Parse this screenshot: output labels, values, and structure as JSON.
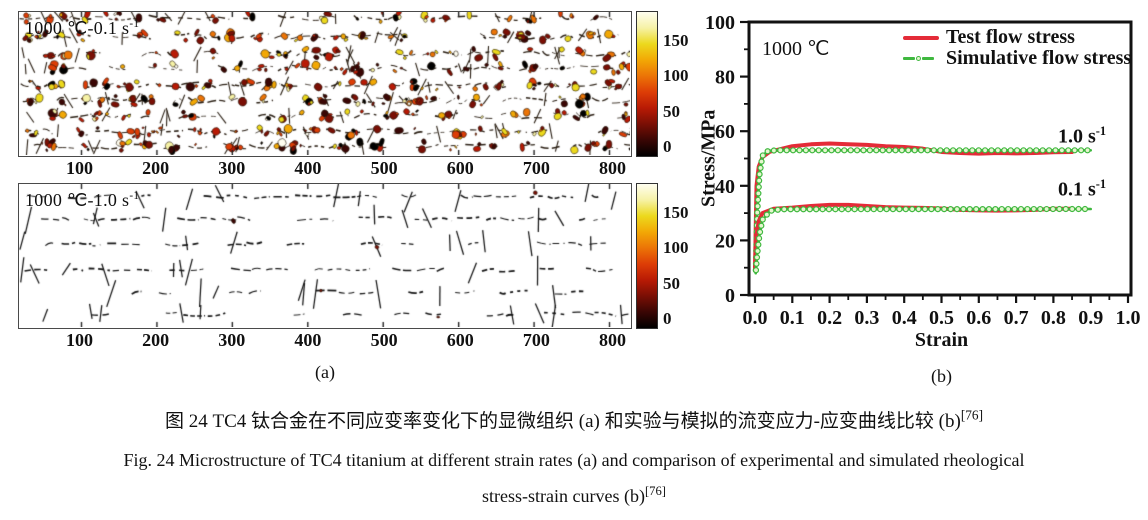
{
  "figure": {
    "caption_zh": "图 24  TC4 钛合金在不同应变率变化下的显微组织 (a) 和实验与模拟的流变应力-应变曲线比较 (b)",
    "caption_zh_ref": "[76]",
    "caption_en_line1": "Fig. 24  Microstructure of TC4 titanium at different strain rates (a) and comparison of experimental and simulated rheological",
    "caption_en_line2": "stress-strain curves (b)",
    "caption_en_ref": "[76]"
  },
  "panel_a": {
    "sublabel": "(a)",
    "colorbar_gradient": [
      "#000000",
      "#3a0604",
      "#7a0f05",
      "#b81a05",
      "#dd3d06",
      "#ec7406",
      "#f2a805",
      "#ecd91d",
      "#f6f2a6",
      "#fffef0"
    ],
    "panels": [
      {
        "label_base": "1000 ℃-0.1 s",
        "label_sup": "-1",
        "xticks": [
          "100",
          "200",
          "300",
          "400",
          "500",
          "600",
          "700",
          "800"
        ],
        "colorbar_ticks": [
          "150",
          "100",
          "50",
          "0"
        ]
      },
      {
        "label_base": "1000 ℃-1.0 s",
        "label_sup": "-1",
        "xticks": [
          "100",
          "200",
          "300",
          "400",
          "500",
          "600",
          "700",
          "800"
        ],
        "colorbar_ticks": [
          "150",
          "100",
          "50",
          "0"
        ]
      }
    ]
  },
  "panel_b": {
    "sublabel": "(b)"
  },
  "chart_data": {
    "type": "line",
    "inner_label": "1000 ℃",
    "xlabel": "Strain",
    "ylabel": "Stress/MPa",
    "xlim": [
      0.0,
      1.0
    ],
    "ylim": [
      0,
      100
    ],
    "xtick_labels": [
      "0.0",
      "0.1",
      "0.2",
      "0.3",
      "0.4",
      "0.5",
      "0.6",
      "0.7",
      "0.8",
      "0.9",
      "1.0"
    ],
    "ytick_labels": [
      "0",
      "20",
      "40",
      "60",
      "80",
      "100"
    ],
    "grid": false,
    "legend_position": "top-right-inside",
    "colors": {
      "test": "#e42b38",
      "simulative": "#3fb83f",
      "marker_fill": "#e6f6cf"
    },
    "legend": [
      {
        "label": "Test flow stress",
        "series_kind": "test"
      },
      {
        "label": "Simulative flow stress",
        "series_kind": "simulative"
      }
    ],
    "annotations": [
      {
        "text_base": "1.0 s",
        "text_sup": "-1"
      },
      {
        "text_base": "0.1 s",
        "text_sup": "-1"
      }
    ],
    "series": [
      {
        "name": "Test flow stress (1.0 s-1)",
        "kind": "test",
        "style": "solid",
        "width": 4,
        "points": [
          [
            0,
            10
          ],
          [
            0.004,
            40
          ],
          [
            0.01,
            47
          ],
          [
            0.02,
            50.5
          ],
          [
            0.04,
            52.5
          ],
          [
            0.07,
            53.5
          ],
          [
            0.1,
            54.5
          ],
          [
            0.15,
            55.2
          ],
          [
            0.2,
            55.5
          ],
          [
            0.25,
            55.2
          ],
          [
            0.3,
            55
          ],
          [
            0.35,
            54.5
          ],
          [
            0.4,
            54.2
          ],
          [
            0.45,
            53.6
          ],
          [
            0.5,
            52.4
          ],
          [
            0.55,
            52
          ],
          [
            0.6,
            51.8
          ],
          [
            0.65,
            52
          ],
          [
            0.7,
            51.9
          ],
          [
            0.75,
            52
          ],
          [
            0.8,
            52.3
          ],
          [
            0.85,
            52.4
          ]
        ]
      },
      {
        "name": "Simulative flow stress (1.0 s-1)",
        "kind": "simulative",
        "style": "dash-circle",
        "width": 2.6,
        "points": [
          [
            0.002,
            8
          ],
          [
            0.006,
            30
          ],
          [
            0.012,
            44
          ],
          [
            0.02,
            51
          ],
          [
            0.035,
            52.8
          ],
          [
            0.06,
            53
          ],
          [
            0.9,
            53
          ]
        ]
      },
      {
        "name": "Test flow stress (0.1 s-1)",
        "kind": "test",
        "style": "solid",
        "width": 4,
        "points": [
          [
            0,
            9
          ],
          [
            0.004,
            22
          ],
          [
            0.01,
            27
          ],
          [
            0.02,
            30
          ],
          [
            0.05,
            31.6
          ],
          [
            0.1,
            32
          ],
          [
            0.15,
            32.6
          ],
          [
            0.2,
            33
          ],
          [
            0.25,
            33
          ],
          [
            0.3,
            32.6
          ],
          [
            0.35,
            32.2
          ],
          [
            0.4,
            32
          ],
          [
            0.45,
            31.9
          ],
          [
            0.5,
            31.7
          ],
          [
            0.55,
            31.2
          ],
          [
            0.6,
            31
          ],
          [
            0.65,
            30.9
          ],
          [
            0.7,
            31
          ],
          [
            0.75,
            31.2
          ],
          [
            0.8,
            31.6
          ],
          [
            0.85,
            31.6
          ]
        ]
      },
      {
        "name": "Simulative flow stress (0.1 s-1)",
        "kind": "simulative",
        "style": "dash-circle",
        "width": 2.6,
        "points": [
          [
            0.002,
            8
          ],
          [
            0.006,
            15
          ],
          [
            0.012,
            22
          ],
          [
            0.02,
            27.5
          ],
          [
            0.04,
            30.8
          ],
          [
            0.07,
            31.4
          ],
          [
            0.9,
            31.5
          ]
        ]
      }
    ]
  }
}
